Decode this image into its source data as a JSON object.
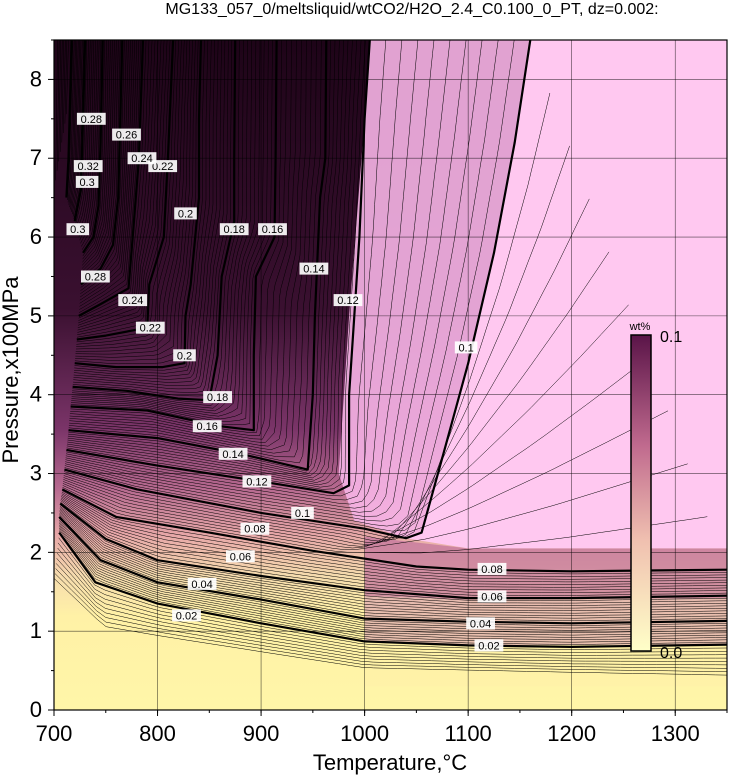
{
  "chart_data": {
    "type": "heatmap",
    "title": "MG133_057_0/meltsliquid/wtCO2/H2O_2.4_C0.100_0_PT, dz=0.002:",
    "xlabel": "Temperature,°C",
    "ylabel": "Pressure,x100MPa",
    "xlim": [
      700,
      1350
    ],
    "ylim": [
      0,
      8.5
    ],
    "x_ticks": [
      "700",
      "800",
      "900",
      "1000",
      "1100",
      "1200",
      "1300"
    ],
    "y_ticks": [
      "0",
      "1",
      "2",
      "3",
      "4",
      "5",
      "6",
      "7",
      "8"
    ],
    "grid": true,
    "colorbar": {
      "label": "wt%",
      "max_label": "0.1",
      "min_label": "0.0",
      "min": 0.0,
      "max": 0.1,
      "colors": [
        "#ffffc8",
        "#f0b8a8",
        "#c06a8e",
        "#5a1448"
      ],
      "saturated_color": "#ffc8f0"
    },
    "contour_interval": 0.002,
    "major_contours": [
      {
        "level": 0.02,
        "label": "0.02",
        "points": [
          [
            705,
            2.25
          ],
          [
            740,
            1.62
          ],
          [
            800,
            1.35
          ],
          [
            900,
            1.1
          ],
          [
            1000,
            0.87
          ],
          [
            1100,
            0.82
          ],
          [
            1200,
            0.8
          ],
          [
            1350,
            0.83
          ]
        ],
        "labels_at": [
          [
            828,
            1.2
          ],
          [
            1120,
            0.82
          ]
        ]
      },
      {
        "level": 0.04,
        "label": "0.04",
        "points": [
          [
            705,
            2.45
          ],
          [
            745,
            1.9
          ],
          [
            800,
            1.62
          ],
          [
            900,
            1.4
          ],
          [
            1000,
            1.16
          ],
          [
            1100,
            1.12
          ],
          [
            1200,
            1.1
          ],
          [
            1350,
            1.13
          ]
        ],
        "labels_at": [
          [
            843,
            1.6
          ],
          [
            1112,
            1.1
          ]
        ]
      },
      {
        "level": 0.06,
        "label": "0.06",
        "points": [
          [
            706,
            2.62
          ],
          [
            750,
            2.17
          ],
          [
            800,
            1.9
          ],
          [
            900,
            1.7
          ],
          [
            1000,
            1.52
          ],
          [
            1100,
            1.42
          ],
          [
            1200,
            1.42
          ],
          [
            1350,
            1.45
          ]
        ],
        "labels_at": [
          [
            880,
            1.95
          ],
          [
            1123,
            1.44
          ]
        ]
      },
      {
        "level": 0.08,
        "label": "0.08",
        "points": [
          [
            708,
            2.8
          ],
          [
            760,
            2.45
          ],
          [
            850,
            2.25
          ],
          [
            950,
            2.02
          ],
          [
            1050,
            1.82
          ],
          [
            1100,
            1.78
          ],
          [
            1200,
            1.76
          ],
          [
            1350,
            1.78
          ]
        ],
        "labels_at": [
          [
            894,
            2.3
          ],
          [
            1123,
            1.79
          ]
        ]
      },
      {
        "level": 0.1,
        "label": "0.1",
        "points": [
          [
            710,
            3.05
          ],
          [
            780,
            2.8
          ],
          [
            900,
            2.5
          ],
          [
            1000,
            2.3
          ],
          [
            1040,
            2.18
          ],
          [
            1055,
            2.25
          ],
          [
            1075,
            3.2
          ],
          [
            1100,
            4.4
          ],
          [
            1125,
            5.8
          ],
          [
            1145,
            7.2
          ],
          [
            1160,
            8.5
          ]
        ],
        "labels_at": [
          [
            940,
            2.5
          ],
          [
            1098,
            4.6
          ]
        ]
      },
      {
        "level": 0.12,
        "label": "0.12",
        "points": [
          [
            712,
            3.3
          ],
          [
            800,
            3.1
          ],
          [
            900,
            2.9
          ],
          [
            970,
            2.75
          ],
          [
            985,
            2.85
          ],
          [
            985,
            4.0
          ],
          [
            990,
            5.0
          ],
          [
            995,
            6.0
          ],
          [
            1000,
            7.5
          ],
          [
            1005,
            8.5
          ]
        ],
        "labels_at": [
          [
            896,
            2.9
          ],
          [
            984,
            5.2
          ]
        ]
      },
      {
        "level": 0.14,
        "label": "0.14",
        "points": [
          [
            714,
            3.55
          ],
          [
            800,
            3.45
          ],
          [
            880,
            3.25
          ],
          [
            945,
            3.05
          ],
          [
            950,
            4.0
          ],
          [
            952,
            5.0
          ],
          [
            957,
            6.5
          ],
          [
            962,
            7.0
          ],
          [
            963,
            8.5
          ]
        ],
        "labels_at": [
          [
            873,
            3.25
          ],
          [
            951,
            5.6
          ]
        ]
      },
      {
        "level": 0.16,
        "label": "0.16",
        "points": [
          [
            716,
            3.85
          ],
          [
            790,
            3.8
          ],
          [
            860,
            3.6
          ],
          [
            893,
            3.55
          ],
          [
            893,
            4.5
          ],
          [
            895,
            5.5
          ],
          [
            913,
            6.0
          ],
          [
            914,
            7.0
          ],
          [
            915,
            8.5
          ]
        ],
        "labels_at": [
          [
            848,
            3.6
          ],
          [
            911,
            6.1
          ]
        ]
      },
      {
        "level": 0.18,
        "label": "0.18",
        "points": [
          [
            718,
            4.1
          ],
          [
            770,
            4.05
          ],
          [
            820,
            3.95
          ],
          [
            850,
            3.93
          ],
          [
            858,
            4.5
          ],
          [
            862,
            5.5
          ],
          [
            874,
            6.2
          ],
          [
            874,
            7.0
          ],
          [
            875,
            8.5
          ]
        ],
        "labels_at": [
          [
            858,
            3.97
          ],
          [
            874,
            6.1
          ]
        ]
      },
      {
        "level": 0.2,
        "label": "0.2",
        "points": [
          [
            720,
            4.4
          ],
          [
            760,
            4.35
          ],
          [
            805,
            4.35
          ],
          [
            826,
            4.4
          ],
          [
            827,
            5.0
          ],
          [
            832,
            5.4
          ],
          [
            840,
            6.5
          ],
          [
            840,
            7.5
          ],
          [
            842,
            8.5
          ]
        ],
        "labels_at": [
          [
            826,
            4.5
          ],
          [
            827,
            6.3
          ]
        ]
      },
      {
        "level": 0.22,
        "label": "0.22",
        "points": [
          [
            722,
            4.7
          ],
          [
            750,
            4.75
          ],
          [
            790,
            4.85
          ],
          [
            792,
            5.4
          ],
          [
            806,
            6.0
          ],
          [
            810,
            7.0
          ],
          [
            815,
            8.5
          ]
        ],
        "labels_at": [
          [
            793,
            4.85
          ],
          [
            805,
            6.9
          ]
        ]
      },
      {
        "level": 0.24,
        "label": "0.24",
        "points": [
          [
            724,
            5.0
          ],
          [
            745,
            5.15
          ],
          [
            772,
            5.35
          ],
          [
            776,
            6.0
          ],
          [
            782,
            7.0
          ],
          [
            786,
            8.5
          ]
        ],
        "labels_at": [
          [
            776,
            5.2
          ],
          [
            785,
            7.0
          ]
        ]
      },
      {
        "level": 0.26,
        "label": "0.26",
        "points": [
          [
            726,
            5.4
          ],
          [
            745,
            5.6
          ],
          [
            757,
            5.9
          ],
          [
            762,
            6.5
          ],
          [
            764,
            7.5
          ],
          [
            766,
            8.5
          ]
        ],
        "labels_at": [
          [
            770,
            7.3
          ]
        ]
      },
      {
        "level": 0.28,
        "label": "0.28",
        "points": [
          [
            728,
            5.8
          ],
          [
            738,
            6.0
          ],
          [
            743,
            6.4
          ],
          [
            745,
            7.2
          ],
          [
            747,
            8.5
          ]
        ],
        "labels_at": [
          [
            740,
            5.5
          ],
          [
            736,
            7.5
          ]
        ]
      },
      {
        "level": 0.3,
        "label": "0.3",
        "points": [
          [
            720,
            6.2
          ],
          [
            726,
            6.6
          ],
          [
            728,
            7.5
          ],
          [
            730,
            8.5
          ]
        ],
        "labels_at": [
          [
            723,
            6.1
          ],
          [
            732,
            6.7
          ]
        ]
      },
      {
        "level": 0.32,
        "label": "0.32",
        "points": [
          [
            712,
            6.5
          ],
          [
            714,
            7.0
          ],
          [
            716,
            8.0
          ],
          [
            717,
            8.5
          ]
        ],
        "labels_at": [
          [
            733,
            6.9
          ]
        ]
      }
    ],
    "saturated_boundary": [
      [
        1040,
        2.18
      ],
      [
        1055,
        2.25
      ],
      [
        1075,
        3.2
      ],
      [
        1100,
        4.4
      ],
      [
        1125,
        5.8
      ],
      [
        1145,
        7.2
      ],
      [
        1160,
        8.5
      ]
    ]
  }
}
